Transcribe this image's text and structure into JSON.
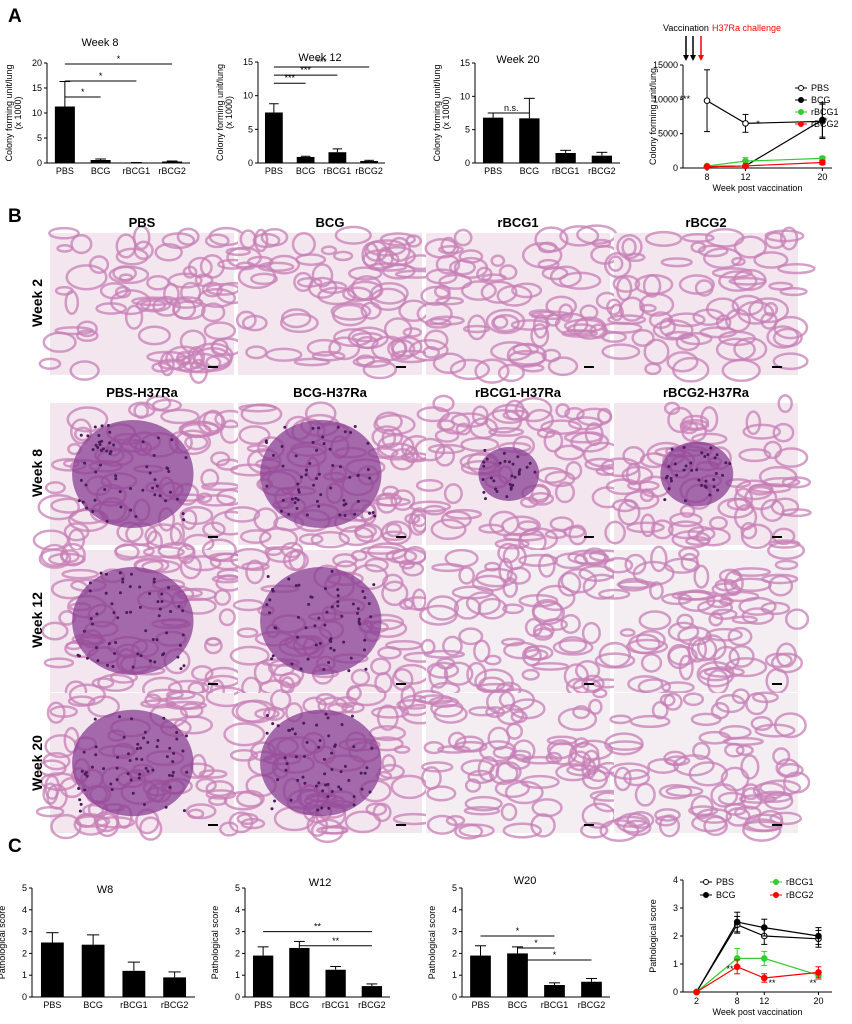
{
  "panel_labels": [
    "A",
    "B",
    "C"
  ],
  "panel_b": {
    "row_labels": [
      "Week 2",
      "Week 8",
      "Week 12",
      "Week 20"
    ],
    "titles_row1": [
      "PBS",
      "BCG",
      "rBCG1",
      "rBCG2"
    ],
    "titles_row2": [
      "PBS-H37Ra",
      "BCG-H37Ra",
      "rBCG1-H37Ra",
      "rBCG2-H37Ra"
    ]
  },
  "chart_data": [
    {
      "type": "bar",
      "title": "Week 8",
      "ylabel": [
        "Colony forming unit/lung",
        "(x 1000)"
      ],
      "categories": [
        "PBS",
        "BCG",
        "rBCG1",
        "rBCG2"
      ],
      "values": [
        11.3,
        0.6,
        0.1,
        0.3
      ],
      "errors": [
        5,
        0.2,
        0,
        0.1
      ],
      "color": "#000000",
      "ylim": [
        0,
        20
      ],
      "yticks": [
        0,
        5,
        10,
        15,
        20
      ],
      "annotations": [
        {
          "text": "*"
        },
        {
          "text": "*"
        },
        {
          "text": "*"
        }
      ]
    },
    {
      "type": "bar",
      "title": "Week 12",
      "ylabel": [
        "Colony forming unit/lung",
        "(x 1000)"
      ],
      "categories": [
        "PBS",
        "BCG",
        "rBCG1",
        "rBCG2"
      ],
      "values": [
        7.5,
        0.9,
        1.6,
        0.3
      ],
      "errors": [
        1.3,
        0.1,
        0.5,
        0.1
      ],
      "color": "#000000",
      "ylim": [
        0,
        15
      ],
      "yticks": [
        0,
        5,
        10,
        15
      ],
      "annotations": [
        {
          "text": "***"
        },
        {
          "text": "***"
        },
        {
          "text": "***"
        }
      ]
    },
    {
      "type": "bar",
      "title": "Week 20",
      "ylabel": [
        "Colony forming unit/lung",
        "(x 1000)"
      ],
      "categories": [
        "PBS",
        "BCG",
        "rBCG1",
        "rBCG2"
      ],
      "values": [
        6.8,
        6.7,
        1.5,
        1.1
      ],
      "errors": [
        0.7,
        3,
        0.4,
        0.5
      ],
      "color": "#000000",
      "ylim": [
        0,
        15
      ],
      "yticks": [
        0,
        5,
        10,
        15
      ],
      "annotations": [
        {
          "text": "n.s."
        }
      ]
    },
    {
      "type": "line",
      "ylabel": "Colony forming unit/lung",
      "xlabel": "Week post vaccination",
      "x": [
        8,
        12,
        20
      ],
      "xlim": [
        5.5,
        21
      ],
      "xticks": [
        8,
        12,
        20
      ],
      "ylim": [
        0,
        15000
      ],
      "yticks": [
        0,
        5000,
        10000,
        15000
      ],
      "series": [
        {
          "name": "PBS",
          "color": "#000000",
          "open": true,
          "values": [
            9800,
            6500,
            6800
          ],
          "errors": [
            4500,
            1300,
            2500
          ]
        },
        {
          "name": "BCG",
          "color": "#000000",
          "values": [
            200,
            300,
            7000
          ],
          "errors": [
            100,
            200,
            2500
          ]
        },
        {
          "name": "rBCG1",
          "color": "#33cc33",
          "values": [
            300,
            1000,
            1400
          ],
          "errors": [
            100,
            500,
            300
          ]
        },
        {
          "name": "rBCG2",
          "color": "#ff0000",
          "values": [
            200,
            300,
            800
          ],
          "errors": [
            100,
            100,
            300
          ]
        }
      ],
      "annotations": [
        {
          "text": "Vaccination"
        },
        {
          "text": "H37Ra challenge",
          "color": "#ff0000"
        },
        {
          "text": "***"
        },
        {
          "text": "*"
        },
        {
          "text": "*"
        }
      ]
    },
    {
      "type": "bar",
      "title": "W8",
      "ylabel": "Pathological score",
      "categories": [
        "PBS",
        "BCG",
        "rBCG1",
        "rBCG2"
      ],
      "values": [
        2.5,
        2.4,
        1.2,
        0.9
      ],
      "errors": [
        0.45,
        0.45,
        0.4,
        0.25
      ],
      "color": "#000000",
      "ylim": [
        0,
        5
      ],
      "yticks": [
        0,
        1,
        2,
        3,
        4,
        5
      ],
      "annotations": []
    },
    {
      "type": "bar",
      "title": "W12",
      "ylabel": "Pathological score",
      "categories": [
        "PBS",
        "BCG",
        "rBCG1",
        "rBCG2"
      ],
      "values": [
        1.9,
        2.25,
        1.25,
        0.5
      ],
      "errors": [
        0.4,
        0.3,
        0.15,
        0.1
      ],
      "color": "#000000",
      "ylim": [
        0,
        5
      ],
      "yticks": [
        0,
        1,
        2,
        3,
        4,
        5
      ],
      "annotations": [
        {
          "text": "**"
        },
        {
          "text": "**"
        }
      ]
    },
    {
      "type": "bar",
      "title": "W20",
      "ylabel": "Pathological score",
      "categories": [
        "PBS",
        "BCG",
        "rBCG1",
        "rBCG2"
      ],
      "values": [
        1.9,
        2.0,
        0.55,
        0.7
      ],
      "errors": [
        0.45,
        0.3,
        0.1,
        0.15
      ],
      "color": "#000000",
      "ylim": [
        0,
        5
      ],
      "yticks": [
        0,
        1,
        2,
        3,
        4,
        5
      ],
      "annotations": [
        {
          "text": "*"
        },
        {
          "text": "*"
        },
        {
          "text": "*"
        }
      ]
    },
    {
      "type": "line",
      "ylabel": "Pathological score",
      "xlabel": "Week post vaccination",
      "x": [
        2,
        8,
        12,
        20
      ],
      "xlim": [
        0,
        22
      ],
      "xticks": [
        2,
        8,
        12,
        20
      ],
      "ylim": [
        0,
        4
      ],
      "yticks": [
        0,
        1,
        2,
        3,
        4
      ],
      "series": [
        {
          "name": "PBS",
          "color": "#000000",
          "open": true,
          "values": [
            0,
            2.4,
            2.0,
            1.9
          ],
          "errors": [
            0,
            0.3,
            0.3,
            0.3
          ]
        },
        {
          "name": "BCG",
          "color": "#000000",
          "values": [
            0,
            2.5,
            2.3,
            2.0
          ],
          "errors": [
            0,
            0.35,
            0.3,
            0.3
          ]
        },
        {
          "name": "rBCG1",
          "color": "#33cc33",
          "values": [
            0,
            1.2,
            1.2,
            0.6
          ],
          "errors": [
            0,
            0.35,
            0.25,
            0.15
          ]
        },
        {
          "name": "rBCG2",
          "color": "#ff0000",
          "values": [
            0,
            0.9,
            0.5,
            0.7
          ],
          "errors": [
            0,
            0.25,
            0.15,
            0.2
          ]
        }
      ],
      "annotations": [
        {
          "text": "**"
        },
        {
          "text": "**"
        },
        {
          "text": "**"
        }
      ]
    }
  ]
}
